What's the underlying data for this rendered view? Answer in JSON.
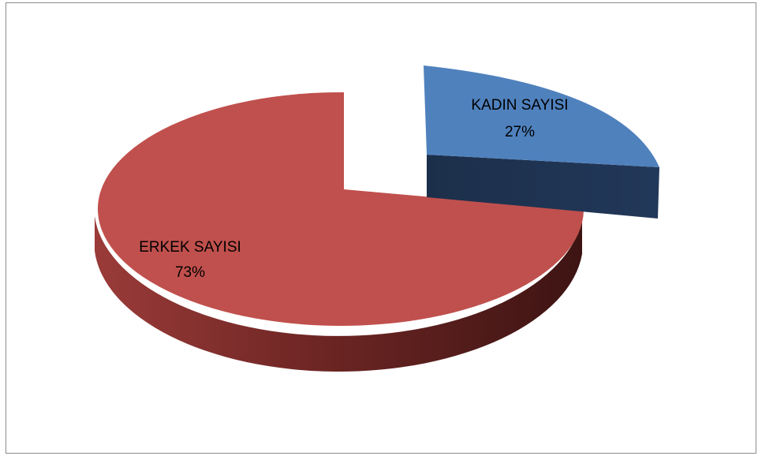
{
  "chart_data": {
    "type": "pie",
    "title": "",
    "legend": "none",
    "slices": [
      {
        "label": "KADIN SAYISI",
        "value": 27,
        "value_text": "27%",
        "color": "#4f81bd",
        "side_color": "#1f3450"
      },
      {
        "label": "ERKEK SAYISI",
        "value": 73,
        "value_text": "73%",
        "color": "#c0504d",
        "side_color": "#8a3432"
      }
    ]
  }
}
